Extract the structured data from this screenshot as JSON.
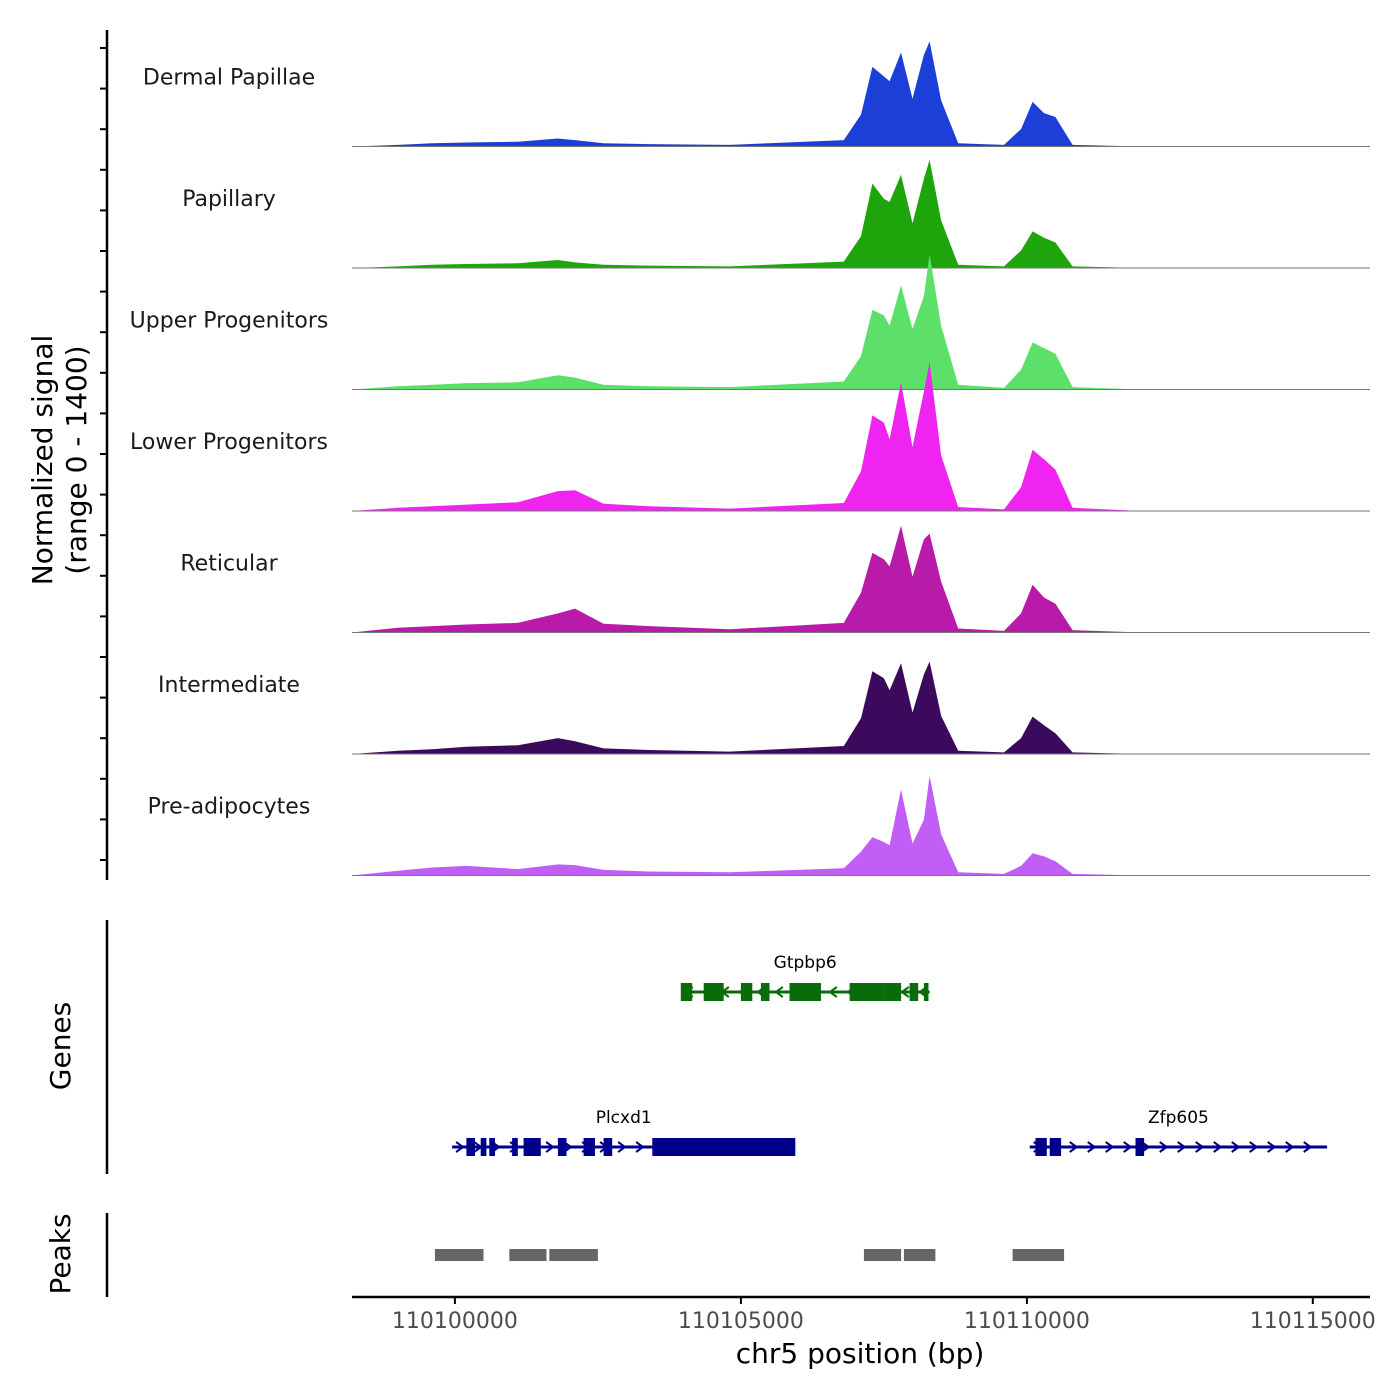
{
  "chart_data": {
    "type": "area",
    "chromosome": "chr5",
    "xlabel": "chr5 position (bp)",
    "ylabel_line1": "Normalized signal",
    "ylabel_line2": "(range 0 - 1400)",
    "xlim": [
      110098200,
      110116000
    ],
    "ylim": [
      0,
      1400
    ],
    "x_ticks": [
      110100000,
      110105000,
      110110000,
      110115000
    ],
    "x_tick_labels": [
      "110100000",
      "110105000",
      "110110000",
      "110115000"
    ],
    "genes_axis_label": "Genes",
    "peaks_axis_label": "Peaks",
    "x": [
      110098200,
      110099000,
      110099600,
      110100200,
      110101100,
      110101800,
      110102100,
      110102600,
      110103400,
      110104800,
      110106800,
      110107100,
      110107300,
      110107500,
      110107600,
      110107800,
      110108000,
      110108200,
      110108300,
      110108500,
      110108800,
      110109600,
      110109900,
      110110100,
      110110300,
      110110500,
      110110800,
      110112000,
      110116000
    ],
    "series": [
      {
        "name": "Dermal Papillae",
        "color": "#1c3fd8",
        "values": [
          0,
          20,
          40,
          50,
          60,
          100,
          80,
          40,
          30,
          20,
          80,
          400,
          1000,
          880,
          820,
          1180,
          600,
          1150,
          1320,
          580,
          40,
          20,
          220,
          560,
          420,
          370,
          20,
          0,
          0
        ]
      },
      {
        "name": "Papillary",
        "color": "#1ea50c",
        "values": [
          0,
          20,
          40,
          50,
          60,
          100,
          70,
          40,
          30,
          20,
          80,
          400,
          1060,
          870,
          830,
          1170,
          560,
          1120,
          1360,
          600,
          40,
          20,
          220,
          460,
          380,
          320,
          20,
          0,
          0
        ]
      },
      {
        "name": "Upper Progenitors",
        "color": "#5de06a",
        "values": [
          0,
          40,
          60,
          80,
          90,
          180,
          150,
          60,
          40,
          30,
          100,
          420,
          1000,
          930,
          800,
          1310,
          760,
          1170,
          1700,
          800,
          60,
          20,
          250,
          590,
          520,
          450,
          30,
          0,
          0
        ]
      },
      {
        "name": "Lower Progenitors",
        "color": "#f024f0",
        "values": [
          0,
          40,
          60,
          80,
          110,
          250,
          260,
          90,
          60,
          30,
          100,
          500,
          1200,
          1110,
          900,
          1620,
          800,
          1500,
          1870,
          700,
          50,
          20,
          300,
          770,
          650,
          520,
          40,
          0,
          0
        ]
      },
      {
        "name": "Reticular",
        "color": "#b81aa9",
        "values": [
          0,
          60,
          80,
          100,
          120,
          240,
          300,
          110,
          80,
          40,
          120,
          500,
          1000,
          920,
          830,
          1340,
          700,
          1170,
          1240,
          640,
          50,
          20,
          240,
          600,
          440,
          360,
          30,
          0,
          0
        ]
      },
      {
        "name": "Intermediate",
        "color": "#3b0a5c",
        "values": [
          0,
          40,
          60,
          90,
          110,
          200,
          160,
          70,
          50,
          30,
          100,
          450,
          1040,
          950,
          800,
          1140,
          520,
          1000,
          1160,
          480,
          40,
          20,
          200,
          470,
          360,
          260,
          20,
          0,
          0
        ]
      },
      {
        "name": "Pre-adipocytes",
        "color": "#c15ef5",
        "values": [
          0,
          60,
          100,
          120,
          80,
          140,
          130,
          70,
          50,
          40,
          90,
          300,
          480,
          420,
          380,
          1080,
          400,
          700,
          1250,
          520,
          40,
          20,
          120,
          280,
          240,
          180,
          20,
          0,
          0
        ]
      }
    ],
    "genes": [
      {
        "name": "Gtpbp6",
        "strand": "-",
        "start": 110103950,
        "end": 110108300,
        "color": "#0a6b0a",
        "exons": [
          [
            110103950,
            110104150
          ],
          [
            110104350,
            110104700
          ],
          [
            110105000,
            110105200
          ],
          [
            110105350,
            110105500
          ],
          [
            110105850,
            110106400
          ],
          [
            110106900,
            110107500
          ],
          [
            110107500,
            110107800
          ],
          [
            110107950,
            110108100
          ],
          [
            110108200,
            110108280
          ]
        ]
      },
      {
        "name": "Plcxd1",
        "strand": "+",
        "start": 110099950,
        "end": 110105950,
        "color": "#00008b",
        "exons": [
          [
            110100200,
            110100350
          ],
          [
            110100450,
            110100550
          ],
          [
            110100600,
            110100700
          ],
          [
            110101000,
            110101100
          ],
          [
            110101200,
            110101500
          ],
          [
            110101800,
            110101950
          ],
          [
            110102250,
            110102450
          ],
          [
            110102600,
            110102750
          ],
          [
            110103450,
            110105950
          ]
        ]
      },
      {
        "name": "Zfp605",
        "strand": "+",
        "start": 110110050,
        "end": 110115250,
        "color": "#00008b",
        "exons": [
          [
            110110150,
            110110350
          ],
          [
            110110400,
            110110600
          ],
          [
            110111900,
            110112050
          ]
        ]
      }
    ],
    "peaks": [
      [
        110099650,
        110100500
      ],
      [
        110100950,
        110101600
      ],
      [
        110101650,
        110102500
      ],
      [
        110107150,
        110107800
      ],
      [
        110107850,
        110108400
      ],
      [
        110109750,
        110110650
      ]
    ]
  }
}
